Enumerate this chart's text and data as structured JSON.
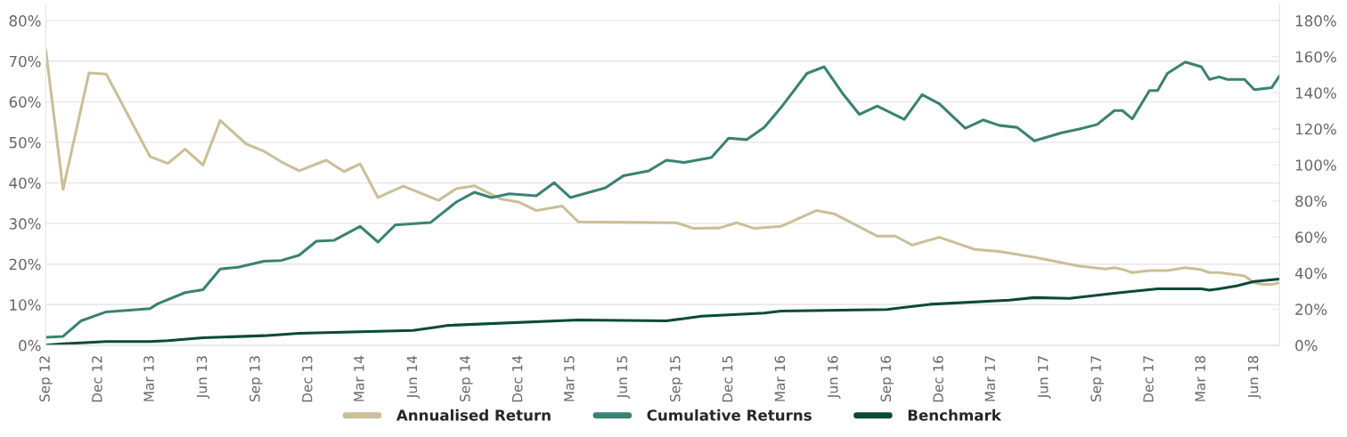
{
  "chart_data": {
    "type": "line",
    "xlim": [
      "2012-09-01",
      "2018-07-15"
    ],
    "xticks": [
      {
        "value": "2012-09-01",
        "label": "Sep 12"
      },
      {
        "value": "2012-12-01",
        "label": "Dec 12"
      },
      {
        "value": "2013-03-01",
        "label": "Mar 13"
      },
      {
        "value": "2013-06-01",
        "label": "Jun 13"
      },
      {
        "value": "2013-09-01",
        "label": "Sep 13"
      },
      {
        "value": "2013-12-01",
        "label": "Dec 13"
      },
      {
        "value": "2014-03-01",
        "label": "Mar 14"
      },
      {
        "value": "2014-06-01",
        "label": "Jun 14"
      },
      {
        "value": "2014-09-01",
        "label": "Sep 14"
      },
      {
        "value": "2014-12-01",
        "label": "Dec 14"
      },
      {
        "value": "2015-03-01",
        "label": "Mar 15"
      },
      {
        "value": "2015-06-01",
        "label": "Jun 15"
      },
      {
        "value": "2015-09-01",
        "label": "Sep 15"
      },
      {
        "value": "2015-12-01",
        "label": "Dec 15"
      },
      {
        "value": "2016-03-01",
        "label": "Mar 16"
      },
      {
        "value": "2016-06-01",
        "label": "Jun 16"
      },
      {
        "value": "2016-09-01",
        "label": "Sep 16"
      },
      {
        "value": "2016-12-01",
        "label": "Dec 16"
      },
      {
        "value": "2017-03-01",
        "label": "Mar 17"
      },
      {
        "value": "2017-06-01",
        "label": "Jun 17"
      },
      {
        "value": "2017-09-01",
        "label": "Sep 17"
      },
      {
        "value": "2017-12-01",
        "label": "Dec 17"
      },
      {
        "value": "2018-03-01",
        "label": "Mar 18"
      },
      {
        "value": "2018-06-01",
        "label": "Jun 18"
      }
    ],
    "ylim": [
      0,
      84
    ],
    "yticks": [
      {
        "value": 0,
        "label": "0%"
      },
      {
        "value": 10,
        "label": "10%"
      },
      {
        "value": 20,
        "label": "20%"
      },
      {
        "value": 30,
        "label": "30%"
      },
      {
        "value": 40,
        "label": "40%"
      },
      {
        "value": 50,
        "label": "50%"
      },
      {
        "value": 60,
        "label": "60%"
      },
      {
        "value": 70,
        "label": "70%"
      },
      {
        "value": 80,
        "label": "80%"
      }
    ],
    "y2lim": [
      0,
      189
    ],
    "y2ticks": [
      {
        "value": 0,
        "label": "0%"
      },
      {
        "value": 20,
        "label": "20%"
      },
      {
        "value": 40,
        "label": "40%"
      },
      {
        "value": 60,
        "label": "60%"
      },
      {
        "value": 80,
        "label": "80%"
      },
      {
        "value": 100,
        "label": "100%"
      },
      {
        "value": 120,
        "label": "120%"
      },
      {
        "value": 140,
        "label": "140%"
      },
      {
        "value": 160,
        "label": "160%"
      },
      {
        "value": 180,
        "label": "180%"
      }
    ],
    "grid": "y",
    "legend": "bottom",
    "series": [
      {
        "name": "Annualised Return",
        "color": "#c9bf98",
        "x": [
          "2012-09-01",
          "2012-10-01",
          "2012-11-15",
          "2012-12-15",
          "2013-03-01",
          "2013-04-01",
          "2013-05-01",
          "2013-06-01",
          "2013-07-01",
          "2013-08-15",
          "2013-09-15",
          "2013-10-15",
          "2013-11-15",
          "2014-01-01",
          "2014-02-01",
          "2014-03-01",
          "2014-04-01",
          "2014-05-15",
          "2014-07-15",
          "2014-08-15",
          "2014-09-15",
          "2014-11-01",
          "2014-12-01",
          "2015-01-01",
          "2015-02-15",
          "2015-03-15",
          "2015-09-01",
          "2015-10-01",
          "2015-11-15",
          "2015-12-15",
          "2016-01-15",
          "2016-03-01",
          "2016-05-01",
          "2016-06-01",
          "2016-08-15",
          "2016-09-15",
          "2016-10-15",
          "2016-12-01",
          "2017-02-01",
          "2017-03-15",
          "2017-05-15",
          "2017-08-01",
          "2017-09-15",
          "2017-10-01",
          "2017-10-15",
          "2017-11-01",
          "2017-12-01",
          "2018-01-01",
          "2018-02-01",
          "2018-03-01",
          "2018-03-15",
          "2018-04-01",
          "2018-05-15",
          "2018-06-01",
          "2018-06-15",
          "2018-07-01",
          "2018-07-15"
        ],
        "values": [
          72.8,
          38.4,
          67.1,
          66.8,
          46.5,
          44.8,
          48.3,
          44.4,
          55.4,
          49.6,
          47.8,
          45.2,
          43.0,
          45.6,
          42.8,
          44.7,
          36.4,
          39.2,
          35.7,
          38.6,
          39.3,
          36.0,
          35.3,
          33.2,
          34.3,
          30.4,
          30.2,
          28.8,
          28.9,
          30.2,
          28.8,
          29.3,
          33.2,
          32.4,
          26.9,
          26.9,
          24.7,
          26.6,
          23.6,
          23.1,
          21.7,
          19.5,
          18.8,
          19.1,
          18.7,
          17.9,
          18.4,
          18.4,
          19.1,
          18.6,
          17.9,
          17.9,
          17.1,
          15.4,
          15.0,
          15.0,
          15.4
        ]
      },
      {
        "name": "Cumulative Returns",
        "color": "#3a8272",
        "axis": "y2",
        "x": [
          "2012-09-01",
          "2012-10-01",
          "2012-11-01",
          "2012-12-15",
          "2013-03-01",
          "2013-03-15",
          "2013-05-01",
          "2013-06-01",
          "2013-07-01",
          "2013-08-01",
          "2013-09-15",
          "2013-10-15",
          "2013-11-15",
          "2013-12-15",
          "2014-01-15",
          "2014-03-01",
          "2014-04-01",
          "2014-05-01",
          "2014-07-01",
          "2014-08-15",
          "2014-09-15",
          "2014-10-15",
          "2014-11-15",
          "2015-01-01",
          "2015-02-01",
          "2015-03-01",
          "2015-05-01",
          "2015-06-01",
          "2015-07-15",
          "2015-08-15",
          "2015-09-15",
          "2015-11-01",
          "2015-12-01",
          "2016-01-01",
          "2016-02-01",
          "2016-03-01",
          "2016-04-15",
          "2016-05-15",
          "2016-06-15",
          "2016-07-15",
          "2016-08-15",
          "2016-10-01",
          "2016-11-01",
          "2016-12-01",
          "2017-01-15",
          "2017-02-15",
          "2017-03-15",
          "2017-04-15",
          "2017-05-15",
          "2017-07-01",
          "2017-08-01",
          "2017-09-01",
          "2017-10-01",
          "2017-10-15",
          "2017-11-01",
          "2017-12-01",
          "2017-12-15",
          "2018-01-01",
          "2018-02-01",
          "2018-03-01",
          "2018-03-15",
          "2018-04-01",
          "2018-04-15",
          "2018-05-15",
          "2018-06-01",
          "2018-06-15",
          "2018-07-01",
          "2018-07-15"
        ],
        "values": [
          4.4,
          4.9,
          13.5,
          18.5,
          20.3,
          23.1,
          29.2,
          30.8,
          42.3,
          43.2,
          46.6,
          47.0,
          49.9,
          57.7,
          58.2,
          65.9,
          57.2,
          66.7,
          68.0,
          79.4,
          84.8,
          81.9,
          84.0,
          82.9,
          90.1,
          81.9,
          87.3,
          93.9,
          96.7,
          102.6,
          101.3,
          104.1,
          114.8,
          114.0,
          120.8,
          131.8,
          150.7,
          154.4,
          140.0,
          128.0,
          132.6,
          125.2,
          138.9,
          133.9,
          120.3,
          124.9,
          121.9,
          120.8,
          113.3,
          117.8,
          119.9,
          122.4,
          130.1,
          130.1,
          125.5,
          141.2,
          141.2,
          150.7,
          157.0,
          154.4,
          147.4,
          148.8,
          147.4,
          147.4,
          141.7,
          142.2,
          142.8,
          149.4
        ]
      },
      {
        "name": "Benchmark",
        "color": "#0b4a3a",
        "axis": "y2",
        "x": [
          "2012-09-01",
          "2012-10-01",
          "2012-12-15",
          "2013-03-01",
          "2013-04-01",
          "2013-06-01",
          "2013-09-15",
          "2013-11-15",
          "2014-06-01",
          "2014-07-15",
          "2014-08-01",
          "2015-03-15",
          "2015-08-15",
          "2015-10-15",
          "2016-02-01",
          "2016-03-01",
          "2016-09-01",
          "2016-11-15",
          "2017-04-01",
          "2017-05-15",
          "2017-07-15",
          "2017-10-01",
          "2017-12-15",
          "2018-03-01",
          "2018-03-15",
          "2018-04-01",
          "2018-05-01",
          "2018-06-01",
          "2018-07-15"
        ],
        "values": [
          0,
          0.8,
          2.0,
          2.0,
          2.5,
          4.1,
          5.3,
          6.6,
          8.2,
          10.2,
          11.0,
          14.0,
          13.5,
          16.1,
          17.8,
          18.9,
          19.8,
          22.7,
          25.0,
          26.4,
          26.0,
          28.8,
          31.3,
          31.3,
          30.5,
          31.3,
          32.9,
          35.4,
          36.7
        ]
      }
    ]
  }
}
